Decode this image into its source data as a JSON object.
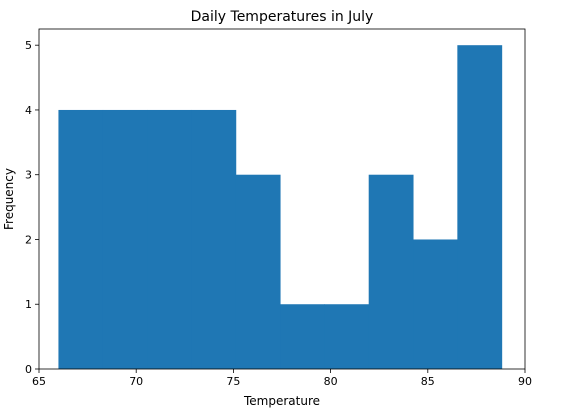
{
  "chart_data": {
    "type": "bar",
    "title": "Daily Temperatures in July",
    "xlabel": "Temperature",
    "ylabel": "Frequency",
    "xlim": [
      65,
      90
    ],
    "ylim": [
      0,
      5.25
    ],
    "xticks": [
      65,
      70,
      75,
      80,
      85,
      90
    ],
    "yticks": [
      0,
      1,
      2,
      3,
      4,
      5
    ],
    "bin_edges": [
      66,
      68.28,
      70.56,
      72.84,
      75.12,
      77.4,
      79.68,
      81.96,
      84.24,
      86.52,
      88.8
    ],
    "values": [
      4,
      4,
      4,
      4,
      3,
      1,
      1,
      3,
      2,
      5
    ],
    "bar_color": "#1f77b4",
    "grid": false,
    "legend": "none"
  }
}
